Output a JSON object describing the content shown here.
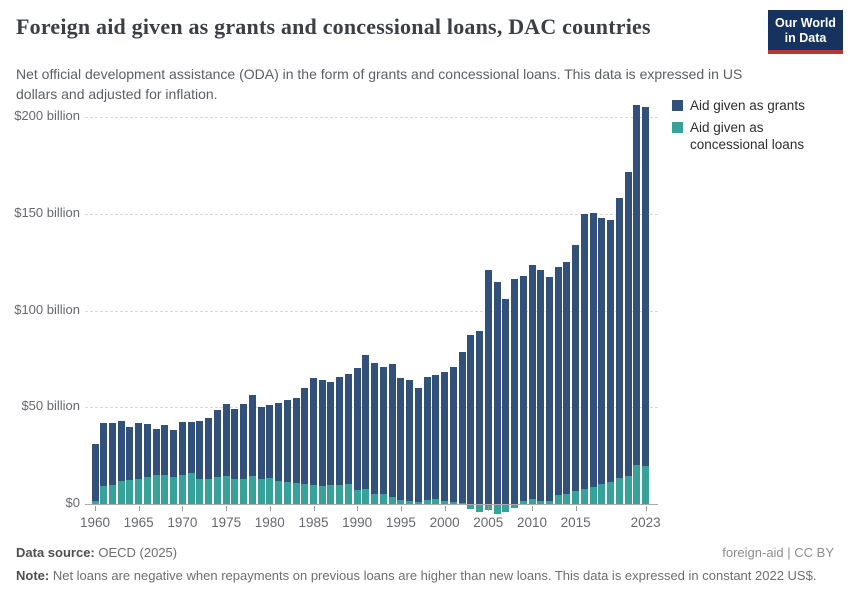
{
  "header": {
    "title": "Foreign aid given as grants and concessional loans, DAC countries",
    "subtitle": "Net official development assistance (ODA) in the form of grants and concessional loans. This data is expressed in US dollars and adjusted for inflation.",
    "logo": {
      "line1": "Our World",
      "line2": "in Data",
      "bg_color": "#15335E",
      "stripe_color": "#B5382F"
    }
  },
  "legend": {
    "items": [
      {
        "label": "Aid given as grants",
        "color": "#31517A"
      },
      {
        "label": "Aid given as concessional loans",
        "color": "#36A298"
      }
    ]
  },
  "chart_data": {
    "type": "bar",
    "stacked": true,
    "title": "Foreign aid given as grants and concessional loans, DAC countries",
    "unit": "US$ billion, constant 2022 prices",
    "grid": true,
    "legend_position": "top-right",
    "x": [
      1960,
      1961,
      1962,
      1963,
      1964,
      1965,
      1966,
      1967,
      1968,
      1969,
      1970,
      1971,
      1972,
      1973,
      1974,
      1975,
      1976,
      1977,
      1978,
      1979,
      1980,
      1981,
      1982,
      1983,
      1984,
      1985,
      1986,
      1987,
      1988,
      1989,
      1990,
      1991,
      1992,
      1993,
      1994,
      1995,
      1996,
      1997,
      1998,
      1999,
      2000,
      2001,
      2002,
      2003,
      2004,
      2005,
      2006,
      2007,
      2008,
      2009,
      2010,
      2011,
      2012,
      2013,
      2014,
      2015,
      2016,
      2017,
      2018,
      2019,
      2020,
      2021,
      2022,
      2023
    ],
    "series": [
      {
        "name": "Aid given as grants",
        "color": "#31517A",
        "values": [
          29.5,
          32.5,
          32,
          31,
          27.5,
          29,
          27.5,
          24,
          26,
          24.5,
          27.5,
          26.5,
          30,
          31.5,
          34.5,
          37,
          36,
          38.5,
          42,
          37,
          37.5,
          40,
          42.5,
          44,
          49.5,
          55,
          54.5,
          53,
          55.5,
          56.5,
          63.5,
          69.5,
          68,
          66,
          69,
          63,
          62.5,
          59,
          63.5,
          64,
          66.5,
          70,
          78,
          87.5,
          89.5,
          121,
          114.5,
          106,
          116.5,
          116.5,
          121,
          119.5,
          116,
          118,
          120,
          127.5,
          142.5,
          141.5,
          137.5,
          135.5,
          144.5,
          157,
          186,
          185.5
        ]
      },
      {
        "name": "Aid given as concessional loans",
        "color": "#36A298",
        "values": [
          1.5,
          9.5,
          10,
          12,
          12.5,
          13,
          14,
          15,
          15,
          14,
          15,
          16,
          13,
          13,
          14,
          14.5,
          13,
          13,
          14.5,
          13,
          13.5,
          12,
          11.5,
          11,
          10.5,
          10,
          9.5,
          10,
          10,
          10.5,
          7,
          7.5,
          5,
          5,
          3.5,
          2,
          1.5,
          1,
          2,
          2.5,
          1.5,
          1,
          0.5,
          -2,
          -3.5,
          -2.5,
          -4.5,
          -3.5,
          -1.5,
          1.5,
          2.5,
          1.5,
          1.5,
          4.5,
          5,
          6.5,
          7.5,
          9,
          10.5,
          11.5,
          13.5,
          14.5,
          20,
          19.5
        ]
      }
    ],
    "ylim": [
      -10,
      210
    ],
    "ytick_values": [
      0,
      50,
      100,
      150,
      200
    ],
    "ytick_labels": [
      "$0",
      "$50 billion",
      "$100 billion",
      "$150 billion",
      "$200 billion"
    ],
    "xtick_labels": [
      "1960",
      "1965",
      "1970",
      "1975",
      "1980",
      "1985",
      "1990",
      "1995",
      "2000",
      "2005",
      "2010",
      "2015",
      "2023"
    ]
  },
  "footer": {
    "source_label": "Data source:",
    "source_value": " OECD (2025)",
    "attribution": "foreign-aid | CC BY",
    "note_label": "Note:",
    "note_value": " Net loans are negative when repayments on previous loans are higher than new loans. This data is expressed in constant 2022 US$."
  }
}
